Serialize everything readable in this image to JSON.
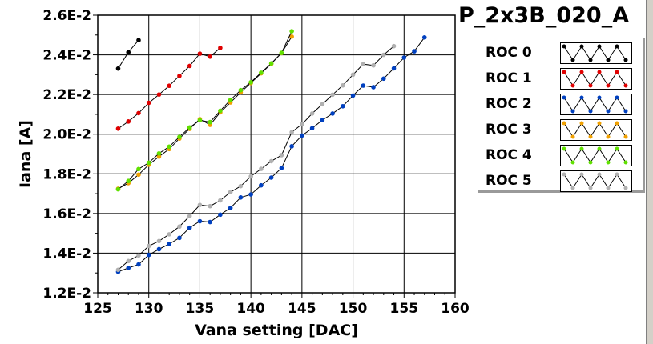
{
  "chart_data": {
    "type": "line",
    "title": "P_2x3B_020_A",
    "xlabel": "Vana setting [DAC]",
    "ylabel": "Iana [A]",
    "xlim": [
      125,
      160
    ],
    "ylim": [
      0.012,
      0.026
    ],
    "x_ticks": [
      "125",
      "130",
      "135",
      "140",
      "145",
      "150",
      "155",
      "160"
    ],
    "y_ticks": [
      "1.2E-2",
      "1.4E-2",
      "1.6E-2",
      "1.8E-2",
      "2.0E-2",
      "2.2E-2",
      "2.4E-2",
      "2.6E-2"
    ],
    "grid": true,
    "legend_position": "right",
    "series": [
      {
        "name": "ROC 0",
        "marker_color": "#000000",
        "x": [
          127,
          128,
          129
        ],
        "y": [
          0.02331,
          0.02413,
          0.02474
        ]
      },
      {
        "name": "ROC 1",
        "marker_color": "#e00000",
        "x": [
          127,
          128,
          129,
          130,
          131,
          132,
          133,
          134,
          135,
          136,
          137
        ],
        "y": [
          0.02028,
          0.02064,
          0.02106,
          0.02158,
          0.022,
          0.02244,
          0.02294,
          0.02344,
          0.02406,
          0.02391,
          0.02435
        ]
      },
      {
        "name": "ROC 2",
        "marker_color": "#0040c0",
        "x": [
          127,
          128,
          129,
          130,
          131,
          132,
          133,
          134,
          135,
          136,
          137,
          138,
          139,
          140,
          141,
          142,
          143,
          144,
          145,
          146,
          147,
          148,
          149,
          150,
          151,
          152,
          153,
          154,
          155,
          156,
          157
        ],
        "y": [
          0.01306,
          0.01325,
          0.01343,
          0.01391,
          0.0142,
          0.01446,
          0.01477,
          0.01528,
          0.01561,
          0.01557,
          0.01594,
          0.01628,
          0.01681,
          0.01696,
          0.01742,
          0.01781,
          0.01829,
          0.01939,
          0.01993,
          0.0203,
          0.02071,
          0.02104,
          0.02141,
          0.02195,
          0.02245,
          0.02237,
          0.0228,
          0.02332,
          0.02386,
          0.02418,
          0.02488
        ]
      },
      {
        "name": "ROC 3",
        "marker_color": "#f0a000",
        "x": [
          127,
          128,
          129,
          130,
          131,
          132,
          133,
          134,
          135,
          136,
          137,
          138,
          139,
          140,
          141,
          142,
          143,
          144
        ],
        "y": [
          0.01725,
          0.01753,
          0.01796,
          0.01846,
          0.01887,
          0.01925,
          0.01978,
          0.02027,
          0.02076,
          0.02047,
          0.0211,
          0.0216,
          0.02211,
          0.02258,
          0.02307,
          0.02355,
          0.02409,
          0.02492
        ]
      },
      {
        "name": "ROC 4",
        "marker_color": "#60e000",
        "x": [
          127,
          128,
          129,
          130,
          131,
          132,
          133,
          134,
          135,
          136,
          137,
          138,
          139,
          140,
          141,
          142,
          143,
          144
        ],
        "y": [
          0.01722,
          0.01764,
          0.01824,
          0.01856,
          0.01903,
          0.01937,
          0.01986,
          0.02034,
          0.0207,
          0.02061,
          0.02118,
          0.02173,
          0.02222,
          0.02262,
          0.0231,
          0.02357,
          0.0241,
          0.02519
        ]
      },
      {
        "name": "ROC 5",
        "marker_color": "#b0b0b0",
        "x": [
          127,
          128,
          129,
          130,
          131,
          132,
          133,
          134,
          135,
          136,
          137,
          138,
          139,
          140,
          141,
          142,
          143,
          144,
          145,
          146,
          147,
          148,
          149,
          150,
          151,
          152,
          153,
          154
        ],
        "y": [
          0.01316,
          0.0136,
          0.01388,
          0.01436,
          0.01461,
          0.01495,
          0.01534,
          0.01587,
          0.01643,
          0.01637,
          0.01666,
          0.01708,
          0.01738,
          0.01787,
          0.01825,
          0.01864,
          0.01894,
          0.0201,
          0.0205,
          0.02104,
          0.02151,
          0.02199,
          0.02246,
          0.023,
          0.02353,
          0.02347,
          0.024,
          0.02444
        ]
      }
    ]
  }
}
